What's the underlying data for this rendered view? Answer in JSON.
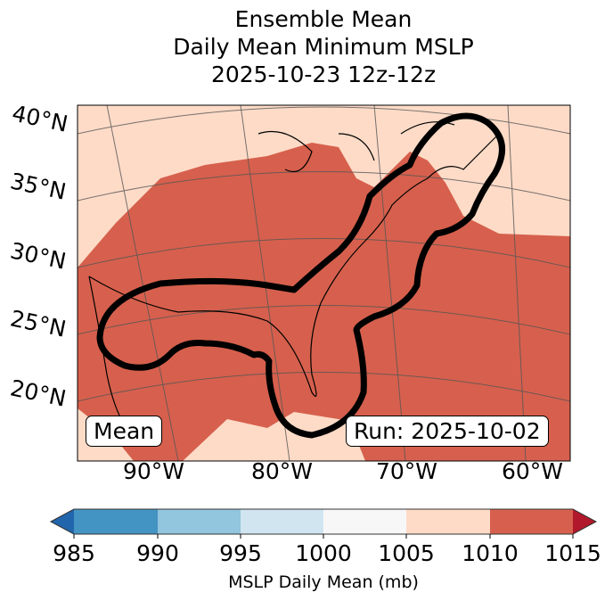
{
  "title": {
    "line1": "Ensemble Mean",
    "line2": "Daily Mean Minimum MSLP",
    "line3": "2025-10-23 12z-12z"
  },
  "map": {
    "lat_labels": [
      "40°N",
      "35°N",
      "30°N",
      "25°N",
      "20°N"
    ],
    "lon_labels": [
      "90°W",
      "80°W",
      "70°W",
      "60°W"
    ],
    "mean_box": "Mean",
    "run_box": "Run: 2025-10-02",
    "colors": {
      "land_bg": "#fddbc7",
      "low_region": "#d6604d",
      "contour": "#000000"
    }
  },
  "colorbar": {
    "ticks": [
      "985",
      "990",
      "995",
      "1000",
      "1005",
      "1010",
      "1015"
    ],
    "label": "MSLP Daily Mean (mb)",
    "colors": [
      "#2166ac",
      "#4393c3",
      "#92c5de",
      "#d1e5f0",
      "#f7f7f7",
      "#fddbc7",
      "#d6604d",
      "#b2182b"
    ]
  }
}
